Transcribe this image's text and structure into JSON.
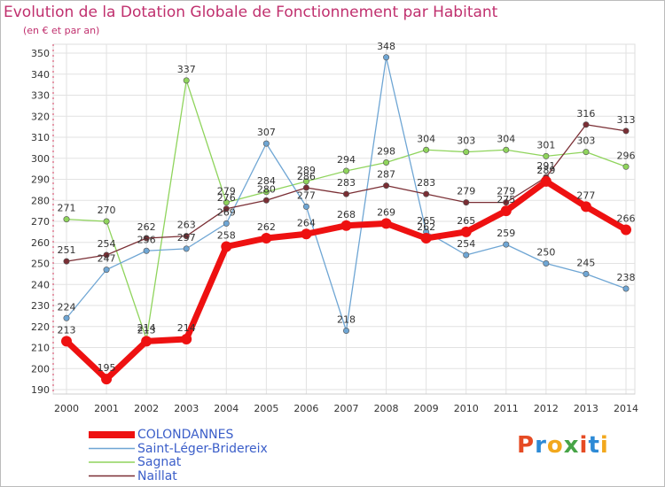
{
  "title": "Evolution de la Dotation Globale de Fonctionnement par Habitant",
  "subtitle": "(en € et par an)",
  "logo": {
    "text": "Proxiti",
    "letters": [
      "P",
      "r",
      "o",
      "x",
      "i",
      "t",
      "i"
    ],
    "colors": [
      "#e64b24",
      "#2d8ad6",
      "#f2a81d",
      "#47a447",
      "#e64b24",
      "#2d8ad6",
      "#f2a81d"
    ]
  },
  "chart_data": {
    "type": "line",
    "title": "Evolution de la Dotation Globale de Fonctionnement par Habitant",
    "subtitle": "(en € et par an)",
    "x": [
      "2000",
      "2001",
      "2002",
      "2003",
      "2004",
      "2005",
      "2006",
      "2007",
      "2008",
      "2009",
      "2010",
      "2011",
      "2012",
      "2013",
      "2014"
    ],
    "ylim": [
      190,
      350
    ],
    "yticks": [
      190,
      200,
      210,
      220,
      230,
      240,
      250,
      260,
      270,
      280,
      290,
      300,
      310,
      320,
      330,
      340,
      350
    ],
    "grid": true,
    "legend": "bottom-left",
    "series": [
      {
        "name": "Sagnat",
        "color": "#8fd45c",
        "values": [
          271,
          270,
          214,
          337,
          279,
          284,
          289,
          294,
          298,
          304,
          303,
          304,
          301,
          303,
          296
        ]
      },
      {
        "name": "Saint-Léger-Bridereix",
        "color": "#6fa6d4",
        "values": [
          224,
          247,
          256,
          257,
          269,
          307,
          277,
          218,
          348,
          265,
          254,
          259,
          250,
          245,
          238
        ]
      },
      {
        "name": "Naillat",
        "color": "#7a2e34",
        "values": [
          251,
          254,
          262,
          263,
          276,
          280,
          286,
          283,
          287,
          283,
          279,
          279,
          291,
          316,
          313
        ]
      },
      {
        "name": "COLONDANNES",
        "color": "#ee1111",
        "values": [
          213,
          195,
          213,
          214,
          258,
          262,
          264,
          268,
          269,
          262,
          265,
          275,
          289,
          277,
          266
        ]
      }
    ],
    "legend_order": [
      "COLONDANNES",
      "Saint-Léger-Bridereix",
      "Sagnat",
      "Naillat"
    ]
  }
}
